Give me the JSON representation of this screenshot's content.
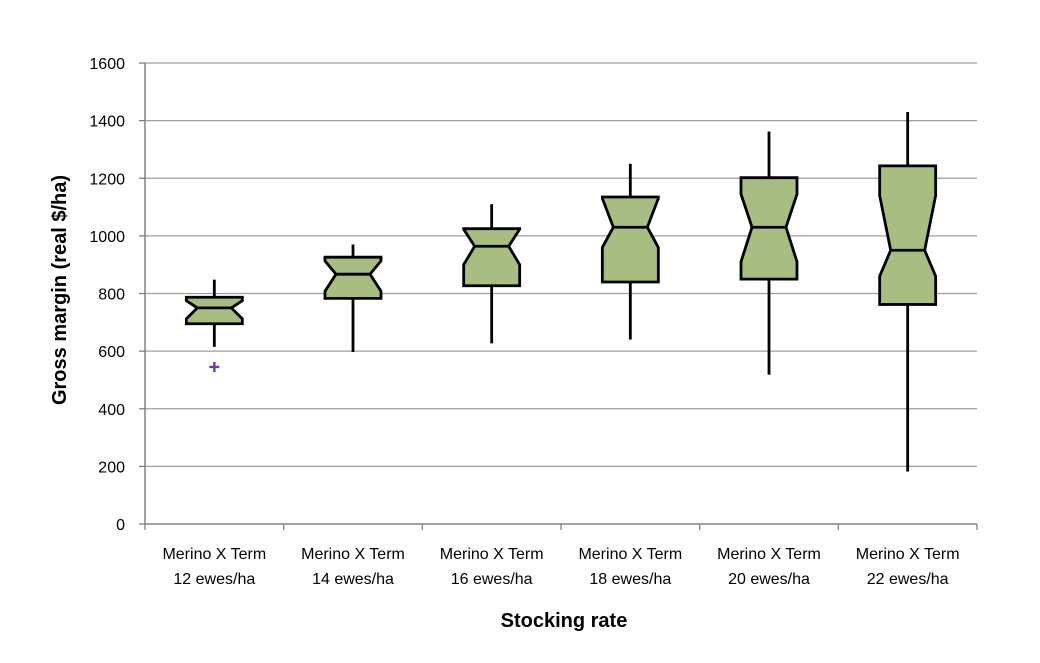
{
  "chart_data": {
    "type": "boxplot",
    "xlabel": "Stocking rate",
    "ylabel": "Gross margin (real $/ha)",
    "ylim": [
      0,
      1600
    ],
    "yticks": [
      "0",
      "200",
      "400",
      "600",
      "800",
      "1000",
      "1200",
      "1400",
      "1600"
    ],
    "grid": true,
    "categories": [
      [
        "Merino X Term",
        "12 ewes/ha"
      ],
      [
        "Merino X Term",
        "14 ewes/ha"
      ],
      [
        "Merino X Term",
        "16 ewes/ha"
      ],
      [
        "Merino X Term",
        "18 ewes/ha"
      ],
      [
        "Merino X Term",
        "20 ewes/ha"
      ],
      [
        "Merino X Term",
        "22 ewes/ha"
      ]
    ],
    "boxes": [
      {
        "whisker_low": 615,
        "q1": 695,
        "notch_low": 712,
        "median": 750,
        "notch_high": 775,
        "q3": 787,
        "whisker_high": 848,
        "outliers": [
          545
        ]
      },
      {
        "whisker_low": 597,
        "q1": 783,
        "notch_low": 808,
        "median": 867,
        "notch_high": 913,
        "q3": 926,
        "whisker_high": 970,
        "outliers": []
      },
      {
        "whisker_low": 627,
        "q1": 827,
        "notch_low": 900,
        "median": 964,
        "notch_high": 1023,
        "q3": 1025,
        "whisker_high": 1110,
        "outliers": []
      },
      {
        "whisker_low": 640,
        "q1": 840,
        "notch_low": 960,
        "median": 1030,
        "notch_high": 1130,
        "q3": 1135,
        "whisker_high": 1250,
        "outliers": []
      },
      {
        "whisker_low": 518,
        "q1": 850,
        "notch_low": 910,
        "median": 1030,
        "notch_high": 1145,
        "q3": 1202,
        "whisker_high": 1362,
        "outliers": []
      },
      {
        "whisker_low": 182,
        "q1": 762,
        "notch_low": 860,
        "median": 950,
        "notch_high": 1140,
        "q3": 1243,
        "whisker_high": 1430,
        "outliers": []
      }
    ],
    "colors": {
      "box_fill": "#a7bd82",
      "box_stroke": "#000000",
      "outlier": "#6a3d9a",
      "grid": "#9e9e9e",
      "axis": "#808080"
    }
  }
}
